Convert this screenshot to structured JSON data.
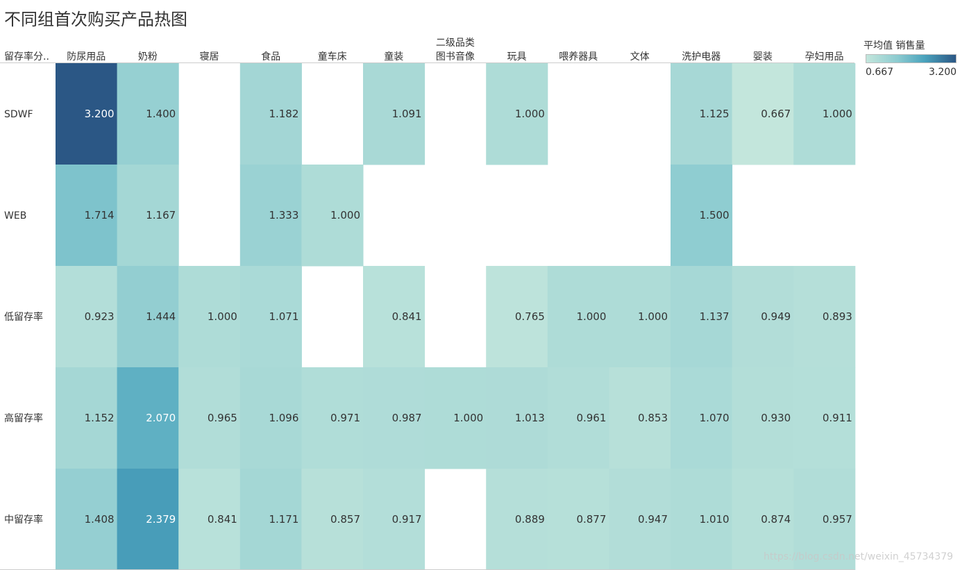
{
  "title": "不同组首次购买产品热图",
  "legend": {
    "title": "平均值 销售量",
    "min_label": "0.667",
    "max_label": "3.200",
    "color_low": "#c3e6dc",
    "color_high": "#2b5785"
  },
  "watermark": "https://blog.csdn.net/weixin_45734379",
  "chart_data": {
    "type": "heatmap",
    "title": "不同组首次购买产品热图",
    "row_header": "留存率分..",
    "column_header": "二级品类",
    "columns": [
      "防尿用品",
      "奶粉",
      "寝居",
      "食品",
      "童车床",
      "童装",
      "图书音像",
      "玩具",
      "喂养器具",
      "文体",
      "洗护电器",
      "婴装",
      "孕妇用品"
    ],
    "rows": [
      "SDWF",
      "WEB",
      "低留存率",
      "高留存率",
      "中留存率"
    ],
    "values": [
      [
        3.2,
        1.4,
        null,
        1.182,
        null,
        1.091,
        null,
        1.0,
        null,
        null,
        1.125,
        0.667,
        1.0
      ],
      [
        1.714,
        1.167,
        null,
        1.333,
        1.0,
        null,
        null,
        null,
        null,
        null,
        1.5,
        null,
        null
      ],
      [
        0.923,
        1.444,
        1.0,
        1.071,
        null,
        0.841,
        null,
        0.765,
        1.0,
        1.0,
        1.137,
        0.949,
        0.893
      ],
      [
        1.152,
        2.07,
        0.965,
        1.096,
        0.971,
        0.987,
        1.0,
        1.013,
        0.961,
        0.853,
        1.07,
        0.93,
        0.911
      ],
      [
        1.408,
        2.379,
        0.841,
        1.171,
        0.857,
        0.917,
        null,
        0.889,
        0.877,
        0.947,
        1.01,
        0.874,
        0.957
      ]
    ],
    "color_range": [
      0.667,
      3.2
    ]
  }
}
